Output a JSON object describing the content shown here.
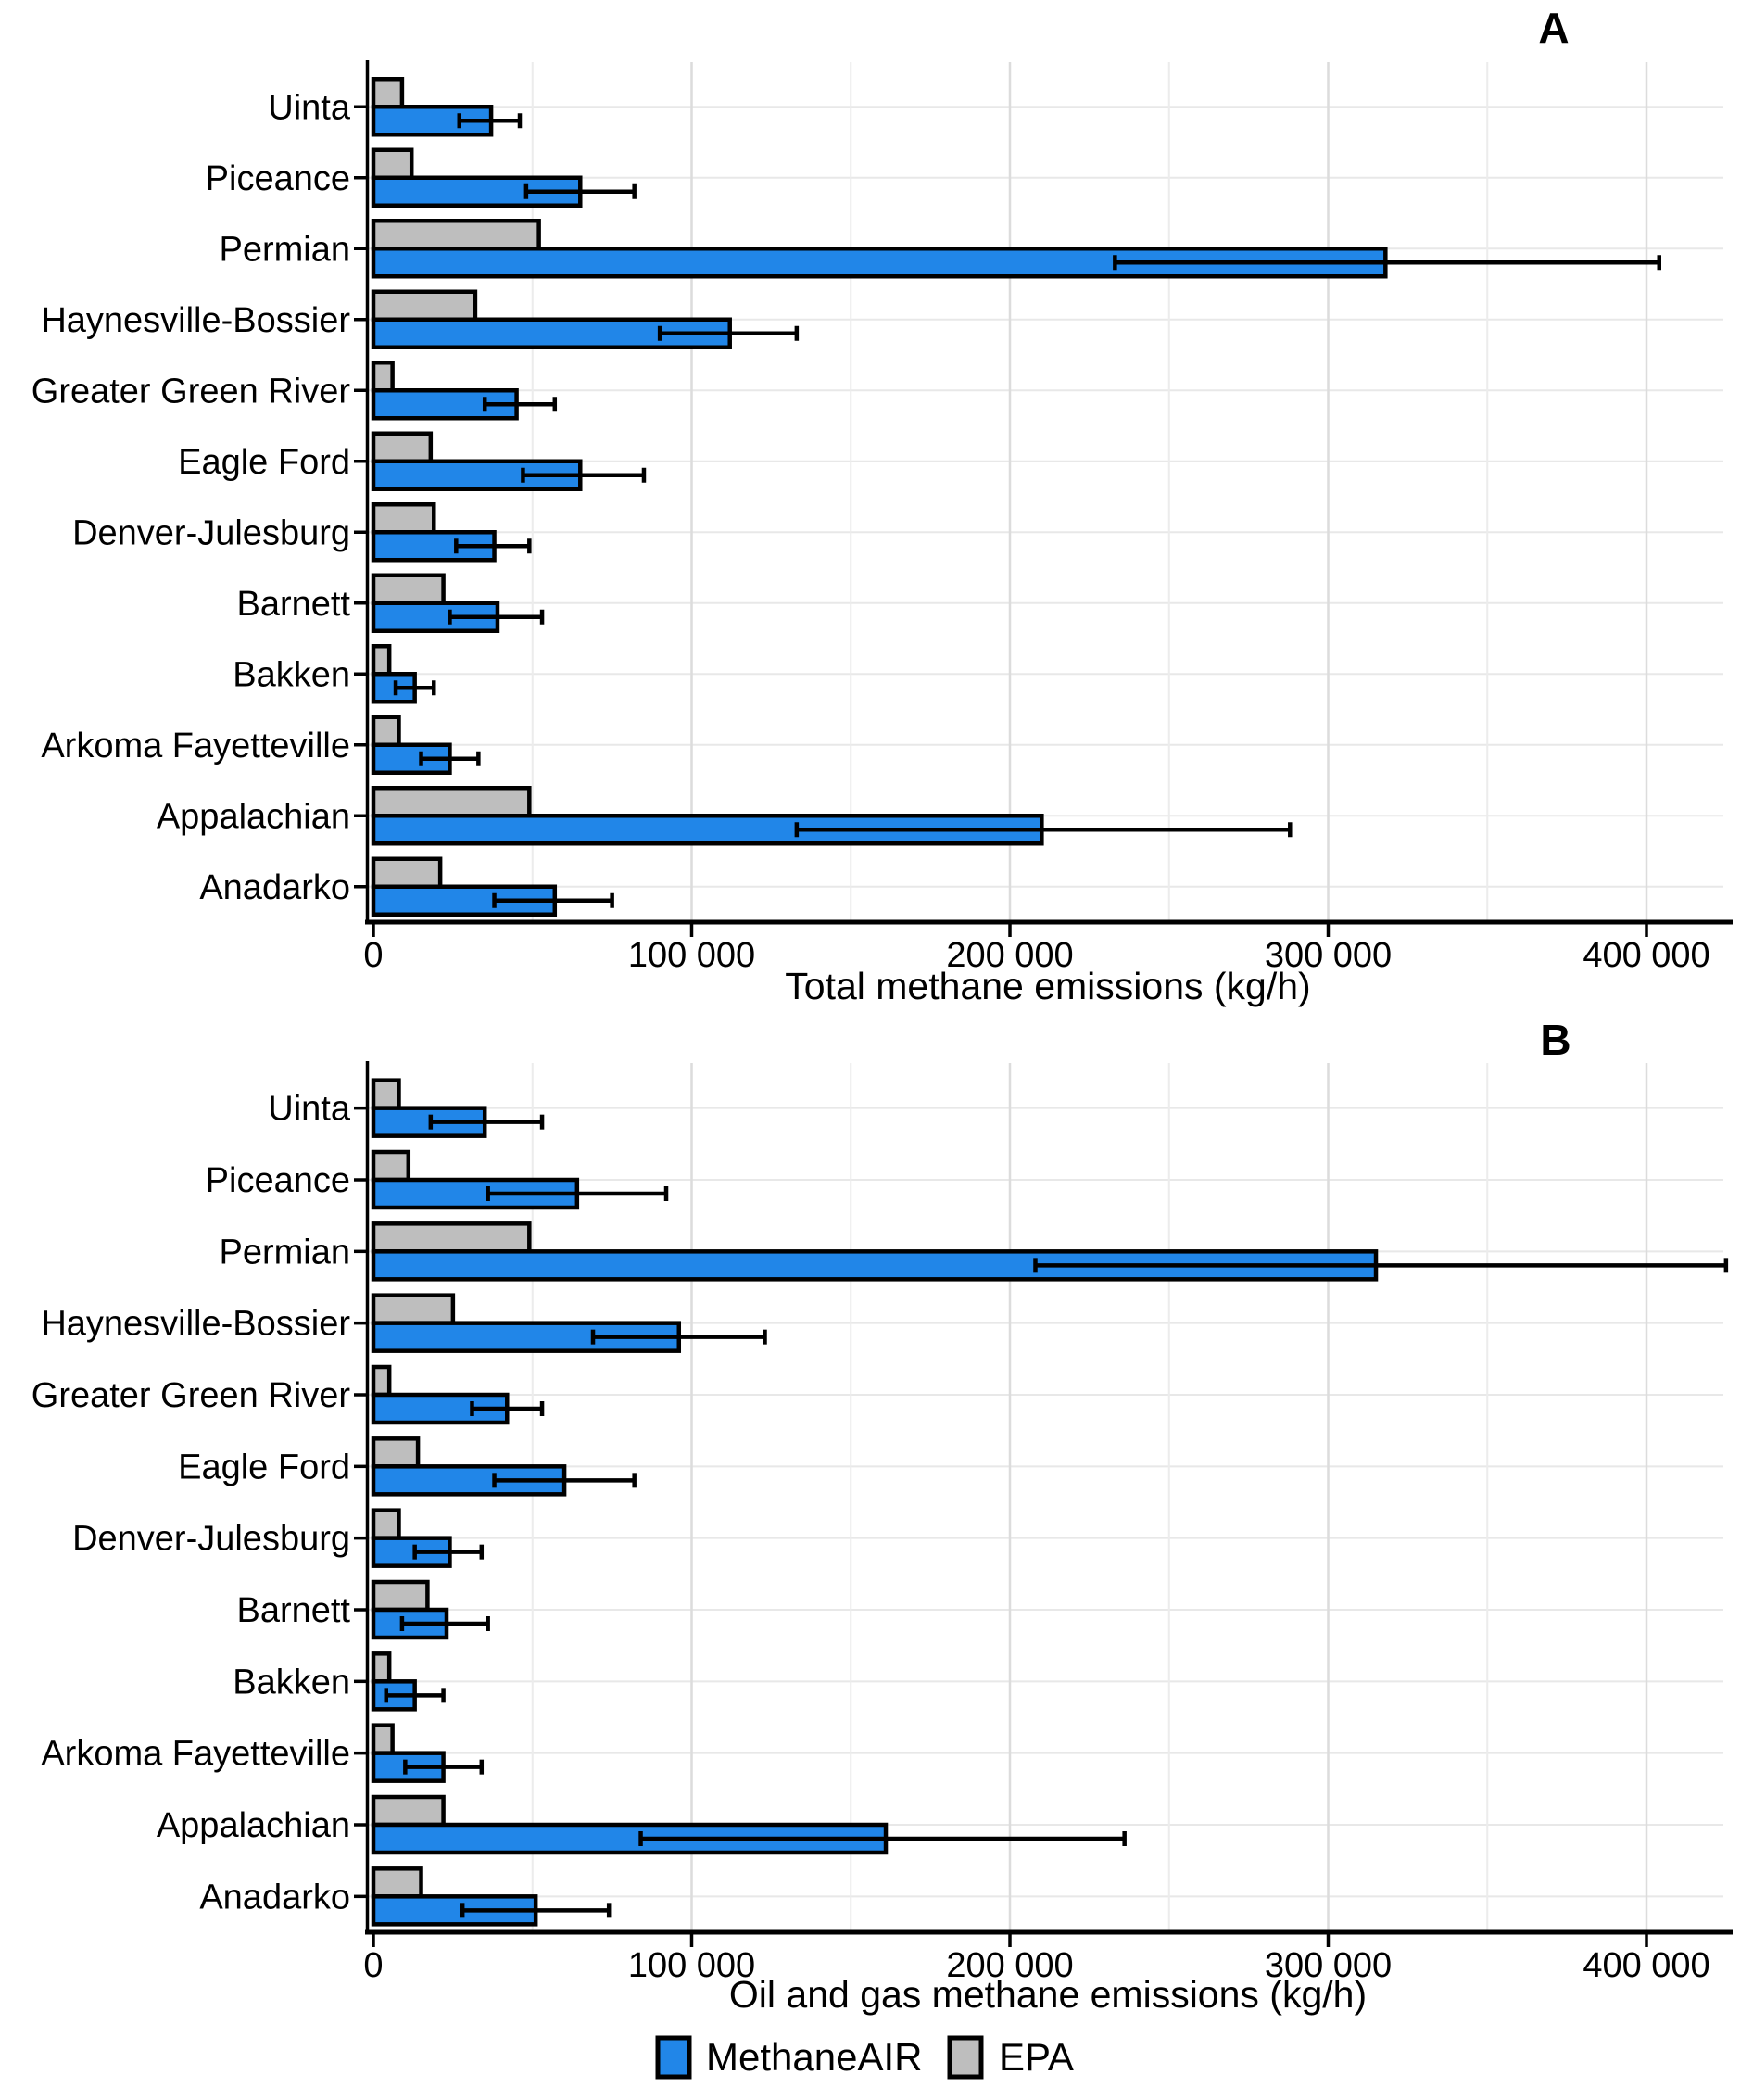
{
  "figure": {
    "background": "#ffffff"
  },
  "colors": {
    "methaneair": "#2186e8",
    "epa": "#bebebe",
    "outline": "#000000",
    "grid_major": "#dcdcdc",
    "grid_minor": "#ececec",
    "grid_row": "#e8e8e8",
    "text": "#000000"
  },
  "legend": {
    "methaneair": "MethaneAIR",
    "epa": "EPA"
  },
  "axis": {
    "ticks": [
      0,
      100000,
      200000,
      300000,
      400000
    ],
    "tick_labels": [
      "0",
      "100 000",
      "200 000",
      "300 000",
      "400 000"
    ],
    "xlim": [
      0,
      425000
    ],
    "minor_step": 50000
  },
  "chart_data": [
    {
      "type": "bar",
      "orientation": "horizontal",
      "panel_label": "A",
      "title": "",
      "xlabel": "Total methane emissions (kg/h)",
      "ylabel": "",
      "grid": true,
      "legend_position": "bottom",
      "xlim": [
        0,
        425000
      ],
      "categories": [
        "Uinta",
        "Piceance",
        "Permian",
        "Haynesville-Bossier",
        "Greater Green River",
        "Eagle Ford",
        "Denver-Julesburg",
        "Barnett",
        "Bakken",
        "Arkoma Fayetteville",
        "Appalachian",
        "Anadarko"
      ],
      "series": [
        {
          "name": "MethaneAIR",
          "values": [
            37000,
            65000,
            318000,
            112000,
            45000,
            65000,
            38000,
            39000,
            13000,
            24000,
            210000,
            57000
          ],
          "ci_low": [
            27000,
            48000,
            233000,
            90000,
            35000,
            47000,
            26000,
            24000,
            7000,
            15000,
            133000,
            38000
          ],
          "ci_high": [
            46000,
            82000,
            404000,
            133000,
            57000,
            85000,
            49000,
            53000,
            19000,
            33000,
            288000,
            75000
          ]
        },
        {
          "name": "EPA",
          "values": [
            9000,
            12000,
            52000,
            32000,
            6000,
            18000,
            19000,
            22000,
            5000,
            8000,
            49000,
            21000
          ]
        }
      ]
    },
    {
      "type": "bar",
      "orientation": "horizontal",
      "panel_label": "B",
      "title": "",
      "xlabel": "Oil and gas methane emissions (kg/h)",
      "ylabel": "",
      "grid": true,
      "legend_position": "bottom",
      "xlim": [
        0,
        425000
      ],
      "categories": [
        "Uinta",
        "Piceance",
        "Permian",
        "Haynesville-Bossier",
        "Greater Green River",
        "Eagle Ford",
        "Denver-Julesburg",
        "Barnett",
        "Bakken",
        "Arkoma Fayetteville",
        "Appalachian",
        "Anadarko"
      ],
      "series": [
        {
          "name": "MethaneAIR",
          "values": [
            35000,
            64000,
            315000,
            96000,
            42000,
            60000,
            24000,
            23000,
            13000,
            22000,
            161000,
            51000
          ],
          "ci_low": [
            18000,
            36000,
            208000,
            69000,
            31000,
            38000,
            13000,
            9000,
            4000,
            10000,
            84000,
            28000
          ],
          "ci_high": [
            53000,
            92000,
            425000,
            123000,
            53000,
            82000,
            34000,
            36000,
            22000,
            34000,
            236000,
            74000
          ]
        },
        {
          "name": "EPA",
          "values": [
            8000,
            11000,
            49000,
            25000,
            5000,
            14000,
            8000,
            17000,
            5000,
            6000,
            22000,
            15000
          ]
        }
      ]
    }
  ]
}
